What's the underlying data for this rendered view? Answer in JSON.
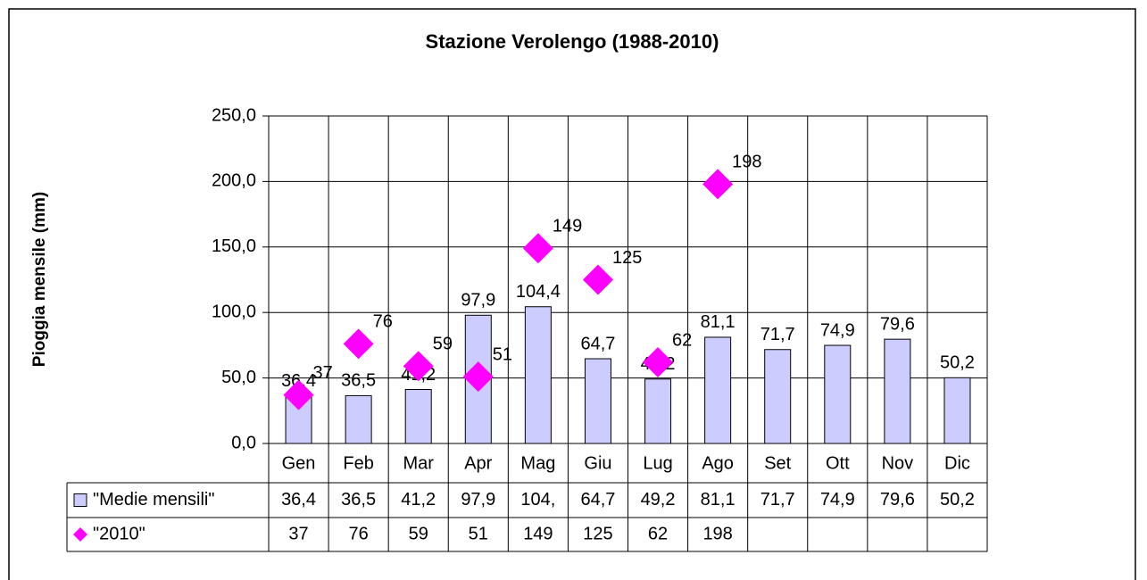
{
  "chart_data": {
    "type": "bar",
    "title": "Stazione Verolengo (1988-2010)",
    "y_label": "Pioggia mensile (mm)",
    "categories": [
      "Gen",
      "Feb",
      "Mar",
      "Apr",
      "Mag",
      "Giu",
      "Lug",
      "Ago",
      "Set",
      "Ott",
      "Nov",
      "Dic"
    ],
    "series": [
      {
        "name": "\"Medie mensili\"",
        "type": "bar",
        "color": "#ccccff",
        "values": [
          36.4,
          36.5,
          41.2,
          97.9,
          104.4,
          64.7,
          49.2,
          81.1,
          71.7,
          74.9,
          79.6,
          50.2
        ],
        "value_labels": [
          "36,4",
          "36,5",
          "41,2",
          "97,9",
          "104,4",
          "64,7",
          "49,2",
          "81,1",
          "71,7",
          "74,9",
          "79,6",
          "50,2"
        ],
        "table_labels": [
          "36,4",
          "36,5",
          "41,2",
          "97,9",
          "104,",
          "64,7",
          "49,2",
          "81,1",
          "71,7",
          "74,9",
          "79,6",
          "50,2"
        ]
      },
      {
        "name": "\"2010\"",
        "type": "scatter",
        "color": "#ff00ff",
        "values": [
          37,
          76,
          59,
          51,
          149,
          125,
          62,
          198,
          null,
          null,
          null,
          null
        ]
      }
    ],
    "ylim": [
      0,
      250
    ],
    "yticks": [
      {
        "value": 0,
        "label": "0,0"
      },
      {
        "value": 50,
        "label": "50,0"
      },
      {
        "value": 100,
        "label": "100,0"
      },
      {
        "value": 150,
        "label": "150,0"
      },
      {
        "value": 200,
        "label": "200,0"
      },
      {
        "value": 250,
        "label": "250,0"
      }
    ],
    "grid": true,
    "data_table": true
  }
}
